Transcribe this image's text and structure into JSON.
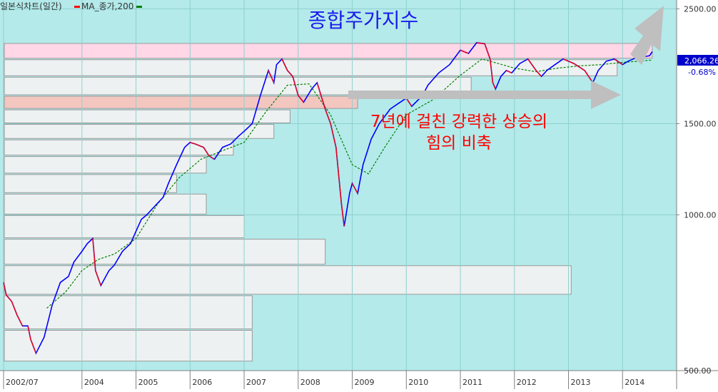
{
  "legend": {
    "chart_name": "일본식차트(일간)",
    "ma_label": "MA_종가,200",
    "price_color": "#0000ff",
    "down_color": "#ff0000",
    "ma_color": "#008000"
  },
  "title": "종합주가지수",
  "annotation": {
    "line1": "7년에 걸친 강력한 상승의",
    "line2": "힘의 비축"
  },
  "last_price": {
    "value": "2,066.26",
    "change": "-0.68%"
  },
  "chart_data": {
    "type": "line",
    "title": "종합주가지수",
    "y_scale": "log",
    "ylim": [
      500,
      2600
    ],
    "y_ticks": [
      {
        "value": 2500,
        "label": "2500.00"
      },
      {
        "value": 1500,
        "label": "1500.00"
      },
      {
        "value": 1000,
        "label": "1000.00"
      },
      {
        "value": 500,
        "label": "500.00"
      }
    ],
    "xlim": [
      2002.55,
      2015.0
    ],
    "x_ticks": [
      {
        "value": 2002.55,
        "label": "2002/07"
      },
      {
        "value": 2004.0,
        "label": "2004"
      },
      {
        "value": 2005.0,
        "label": "2005"
      },
      {
        "value": 2006.0,
        "label": "2006"
      },
      {
        "value": 2007.0,
        "label": "2007"
      },
      {
        "value": 2008.0,
        "label": "2008"
      },
      {
        "value": 2009.0,
        "label": "2009"
      },
      {
        "value": 2010.0,
        "label": "2010"
      },
      {
        "value": 2011.0,
        "label": "2011"
      },
      {
        "value": 2012.0,
        "label": "2012"
      },
      {
        "value": 2013.0,
        "label": "2013"
      },
      {
        "value": 2014.0,
        "label": "2014"
      }
    ],
    "grid": true,
    "series": [
      {
        "name": "일본식차트(일간)",
        "color": "#0000ff",
        "x": [
          2002.55,
          2002.6,
          2002.7,
          2002.8,
          2002.9,
          2003.0,
          2003.05,
          2003.15,
          2003.3,
          2003.45,
          2003.6,
          2003.75,
          2003.85,
          2004.0,
          2004.1,
          2004.2,
          2004.25,
          2004.35,
          2004.5,
          2004.6,
          2004.75,
          2004.9,
          2005.0,
          2005.1,
          2005.2,
          2005.35,
          2005.5,
          2005.6,
          2005.75,
          2005.9,
          2006.0,
          2006.1,
          2006.25,
          2006.35,
          2006.45,
          2006.6,
          2006.75,
          2006.9,
          2007.0,
          2007.15,
          2007.3,
          2007.45,
          2007.55,
          2007.6,
          2007.7,
          2007.8,
          2007.9,
          2008.0,
          2008.1,
          2008.25,
          2008.35,
          2008.5,
          2008.6,
          2008.7,
          2008.8,
          2008.85,
          2008.95,
          2009.0,
          2009.1,
          2009.2,
          2009.35,
          2009.5,
          2009.7,
          2009.85,
          2010.0,
          2010.1,
          2010.3,
          2010.4,
          2010.6,
          2010.8,
          2011.0,
          2011.15,
          2011.3,
          2011.45,
          2011.55,
          2011.6,
          2011.65,
          2011.75,
          2011.85,
          2011.95,
          2012.1,
          2012.25,
          2012.4,
          2012.5,
          2012.6,
          2012.75,
          2012.9,
          2013.0,
          2013.1,
          2013.3,
          2013.45,
          2013.55,
          2013.7,
          2013.85,
          2014.0,
          2014.1,
          2014.25,
          2014.4,
          2014.5,
          2014.55
        ],
        "values": [
          740,
          700,
          680,
          640,
          610,
          610,
          575,
          540,
          580,
          670,
          740,
          760,
          810,
          850,
          880,
          900,
          780,
          730,
          780,
          800,
          850,
          880,
          930,
          980,
          1000,
          1040,
          1080,
          1150,
          1250,
          1350,
          1380,
          1370,
          1350,
          1300,
          1280,
          1350,
          1370,
          1420,
          1450,
          1500,
          1700,
          1900,
          1800,
          1950,
          2000,
          1900,
          1850,
          1700,
          1650,
          1750,
          1800,
          1600,
          1500,
          1350,
          1050,
          950,
          1100,
          1150,
          1100,
          1250,
          1400,
          1500,
          1600,
          1640,
          1680,
          1620,
          1700,
          1780,
          1880,
          1950,
          2080,
          2050,
          2150,
          2140,
          2000,
          1800,
          1750,
          1850,
          1900,
          1880,
          1960,
          2000,
          1900,
          1850,
          1900,
          1950,
          2000,
          1980,
          1960,
          1900,
          1800,
          1900,
          1980,
          2000,
          1950,
          1980,
          2010,
          2020,
          2030,
          2066
        ]
      },
      {
        "name": "MA_종가,200",
        "color": "#008000",
        "x": [
          2003.35,
          2003.7,
          2004.0,
          2004.3,
          2004.6,
          2005.0,
          2005.4,
          2005.8,
          2006.2,
          2006.6,
          2007.0,
          2007.4,
          2007.8,
          2008.2,
          2008.6,
          2009.0,
          2009.3,
          2009.6,
          2010.0,
          2010.5,
          2011.0,
          2011.4,
          2011.7,
          2012.0,
          2012.4,
          2012.8,
          2013.2,
          2013.6,
          2014.0,
          2014.3,
          2014.55
        ],
        "values": [
          660,
          710,
          780,
          820,
          840,
          900,
          1050,
          1180,
          1280,
          1330,
          1380,
          1580,
          1780,
          1790,
          1560,
          1250,
          1200,
          1350,
          1560,
          1670,
          1860,
          2000,
          1960,
          1920,
          1890,
          1920,
          1940,
          1950,
          1970,
          1980,
          1990
        ]
      }
    ]
  },
  "volume_profile": {
    "bins": [
      {
        "lo": 2000,
        "hi": 2150,
        "x_end": 2014.55,
        "color": "#ffd7e6"
      },
      {
        "lo": 1850,
        "hi": 2000,
        "x_end": 2013.9
      },
      {
        "lo": 1700,
        "hi": 1850,
        "x_end": 2011.2
      },
      {
        "lo": 1600,
        "hi": 1700,
        "x_end": 2009.1,
        "color": "#f4c6c0"
      },
      {
        "lo": 1500,
        "hi": 1600,
        "x_end": 2007.85
      },
      {
        "lo": 1400,
        "hi": 1500,
        "x_end": 2007.55
      },
      {
        "lo": 1300,
        "hi": 1400,
        "x_end": 2006.8
      },
      {
        "lo": 1200,
        "hi": 1300,
        "x_end": 2006.3
      },
      {
        "lo": 1100,
        "hi": 1200,
        "x_end": 2005.75
      },
      {
        "lo": 1000,
        "hi": 1100,
        "x_end": 2006.3
      },
      {
        "lo": 900,
        "hi": 1000,
        "x_end": 2007.0
      },
      {
        "lo": 800,
        "hi": 900,
        "x_end": 2008.5
      },
      {
        "lo": 700,
        "hi": 800,
        "x_end": 2013.05
      },
      {
        "lo": 600,
        "hi": 700,
        "x_end": 2007.15
      },
      {
        "lo": 520,
        "hi": 600,
        "x_end": 2007.15
      }
    ],
    "edge_color": "#9a9a9a",
    "fill_color": "#eef1f1"
  },
  "colors": {
    "background": "#b4eaea",
    "axis_panel": "#ffffff",
    "title": "#1a1aee",
    "annotation": "#ff0000",
    "arrow": "#bfbfbf",
    "badge": "#0000cc"
  }
}
